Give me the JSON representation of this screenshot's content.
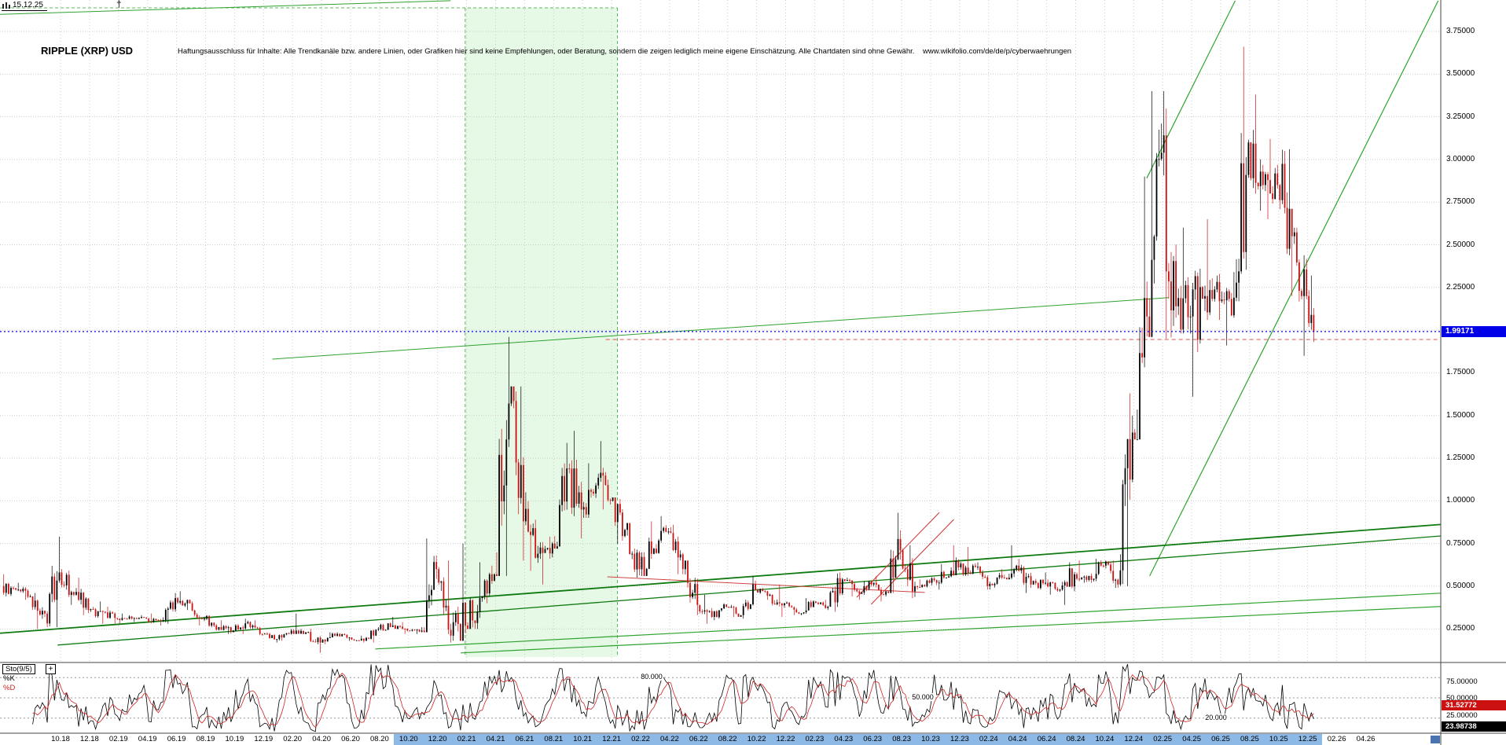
{
  "header": {
    "date_chip": "15.12.25",
    "cross_marker": "†",
    "title": "RIPPLE (XRP) USD",
    "disclaimer": "Haftungsausschluss für Inhalte: Alle Trendkanäle bzw. andere Linien, oder Grafiken hier sind keine Empfehlungen, oder Beratung, sondern die zeigen lediglich meine eigene Einschätzung. Alle Chartdaten sind ohne Gewähr.",
    "source_url": "www.wikifolio.com/de/de/p/cyberwaehrungen"
  },
  "price_axis": {
    "ticks": [
      "3.75000",
      "3.50000",
      "3.25000",
      "3.00000",
      "2.75000",
      "2.50000",
      "2.25000",
      "1.75000",
      "1.50000",
      "1.25000",
      "1.00000",
      "0.75000",
      "0.50000",
      "0.25000"
    ],
    "current_badge": "1.99171"
  },
  "indicator_panel": {
    "name": "Sto(9/5)",
    "add_button": "+",
    "k_label": "%K",
    "d_label": "%D",
    "level_labels": [
      "80.000",
      "50.000",
      "20.000"
    ],
    "axis_ticks": [
      "75.00000",
      "50.00000",
      "25.00000"
    ],
    "d_value_badge": "31.52772",
    "k_value_badge": "23.98738"
  },
  "time_axis": {
    "labels": [
      "10.18",
      "12.18",
      "02.19",
      "04.19",
      "06.19",
      "08.19",
      "10.19",
      "12.19",
      "02.20",
      "04.20",
      "06.20",
      "08.20",
      "10.20",
      "12.20",
      "02.21",
      "04.21",
      "06.21",
      "08.21",
      "10.21",
      "12.21",
      "02.22",
      "04.22",
      "06.22",
      "08.22",
      "10.22",
      "12.22",
      "02.23",
      "04.23",
      "06.23",
      "08.23",
      "10.23",
      "12.23",
      "02.24",
      "04.24",
      "06.24",
      "08.24",
      "10.24",
      "12.24",
      "02.25",
      "04.25",
      "06.25",
      "08.25",
      "10.25",
      "12.25",
      "02.26",
      "04.26"
    ],
    "highlight_from": "10.20",
    "highlight_to": "12.25"
  },
  "chart_data": {
    "type": "candlestick",
    "symbol": "RIPPLE (XRP) USD",
    "current_price": 1.99171,
    "ylim": [
      0.05,
      3.93
    ],
    "price_tick_step": 0.25,
    "months_start": "2018-06",
    "monthly_ohlc_columns": [
      "close",
      "high",
      "low"
    ],
    "monthly_ohlc": [
      [
        0.48,
        0.57,
        0.44
      ],
      [
        0.44,
        0.52,
        0.42
      ],
      [
        0.34,
        0.46,
        0.25
      ],
      [
        0.58,
        0.79,
        0.26
      ],
      [
        0.45,
        0.6,
        0.39
      ],
      [
        0.36,
        0.55,
        0.33
      ],
      [
        0.35,
        0.41,
        0.28
      ],
      [
        0.31,
        0.38,
        0.28
      ],
      [
        0.31,
        0.34,
        0.28
      ],
      [
        0.31,
        0.33,
        0.29
      ],
      [
        0.3,
        0.34,
        0.27
      ],
      [
        0.43,
        0.46,
        0.28
      ],
      [
        0.4,
        0.47,
        0.36
      ],
      [
        0.31,
        0.41,
        0.27
      ],
      [
        0.26,
        0.33,
        0.24
      ],
      [
        0.24,
        0.3,
        0.22
      ],
      [
        0.29,
        0.31,
        0.22
      ],
      [
        0.22,
        0.3,
        0.21
      ],
      [
        0.19,
        0.23,
        0.17
      ],
      [
        0.24,
        0.25,
        0.18
      ],
      [
        0.23,
        0.34,
        0.22
      ],
      [
        0.17,
        0.25,
        0.11
      ],
      [
        0.21,
        0.23,
        0.16
      ],
      [
        0.2,
        0.23,
        0.18
      ],
      [
        0.18,
        0.21,
        0.17
      ],
      [
        0.25,
        0.26,
        0.17
      ],
      [
        0.27,
        0.32,
        0.24
      ],
      [
        0.24,
        0.29,
        0.22
      ],
      [
        0.24,
        0.26,
        0.22
      ],
      [
        0.6,
        0.78,
        0.23
      ],
      [
        0.21,
        0.65,
        0.17
      ],
      [
        0.27,
        0.75,
        0.18
      ],
      [
        0.43,
        0.64,
        0.25
      ],
      [
        0.57,
        0.62,
        0.4
      ],
      [
        1.57,
        1.96,
        0.56
      ],
      [
        0.88,
        1.67,
        0.65
      ],
      [
        0.69,
        1.05,
        0.59
      ],
      [
        0.75,
        0.79,
        0.51
      ],
      [
        1.19,
        1.34,
        0.72
      ],
      [
        0.95,
        1.41,
        0.78
      ],
      [
        1.09,
        1.22,
        0.9
      ],
      [
        1.0,
        1.35,
        0.95
      ],
      [
        0.83,
        1.02,
        0.75
      ],
      [
        0.6,
        0.87,
        0.55
      ],
      [
        0.72,
        0.88,
        0.56
      ],
      [
        0.82,
        0.91,
        0.69
      ],
      [
        0.6,
        0.86,
        0.57
      ],
      [
        0.39,
        0.65,
        0.33
      ],
      [
        0.32,
        0.45,
        0.28
      ],
      [
        0.38,
        0.4,
        0.3
      ],
      [
        0.33,
        0.39,
        0.32
      ],
      [
        0.48,
        0.56,
        0.31
      ],
      [
        0.45,
        0.49,
        0.42
      ],
      [
        0.4,
        0.51,
        0.32
      ],
      [
        0.34,
        0.41,
        0.33
      ],
      [
        0.41,
        0.43,
        0.33
      ],
      [
        0.38,
        0.42,
        0.36
      ],
      [
        0.54,
        0.58,
        0.35
      ],
      [
        0.47,
        0.55,
        0.44
      ],
      [
        0.51,
        0.53,
        0.42
      ],
      [
        0.47,
        0.56,
        0.41
      ],
      [
        0.71,
        0.93,
        0.46
      ],
      [
        0.5,
        0.74,
        0.43
      ],
      [
        0.52,
        0.54,
        0.48
      ],
      [
        0.55,
        0.63,
        0.48
      ],
      [
        0.61,
        0.74,
        0.55
      ],
      [
        0.62,
        0.73,
        0.56
      ],
      [
        0.5,
        0.64,
        0.48
      ],
      [
        0.55,
        0.6,
        0.48
      ],
      [
        0.62,
        0.74,
        0.54
      ],
      [
        0.51,
        0.66,
        0.46
      ],
      [
        0.52,
        0.58,
        0.48
      ],
      [
        0.48,
        0.54,
        0.45
      ],
      [
        0.57,
        0.64,
        0.39
      ],
      [
        0.56,
        0.65,
        0.52
      ],
      [
        0.62,
        0.66,
        0.52
      ],
      [
        0.51,
        0.65,
        0.49
      ],
      [
        1.4,
        1.63,
        0.5
      ],
      [
        2.08,
        2.9,
        1.36
      ],
      [
        3.04,
        3.4,
        1.96
      ],
      [
        2.14,
        3.4,
        1.95
      ],
      [
        2.08,
        2.6,
        1.98
      ],
      [
        2.2,
        2.36,
        1.61
      ],
      [
        2.17,
        2.65,
        2.06
      ],
      [
        2.19,
        2.34,
        1.91
      ],
      [
        3.1,
        3.66,
        2.17
      ],
      [
        2.85,
        3.38,
        2.7
      ],
      [
        2.85,
        3.12,
        2.65
      ],
      [
        2.55,
        3.06,
        2.2
      ],
      [
        2.2,
        2.6,
        1.85
      ],
      [
        1.99171,
        2.32,
        1.93
      ]
    ],
    "shaded_region": {
      "from": "2021-02",
      "to": "2021-12",
      "u_from": 31.9,
      "u_to": 42.4,
      "color": "#d5f3d5"
    },
    "current_price_line": {
      "price": 1.99171,
      "color": "#0000ff",
      "style": "dotted"
    },
    "resistance_dashed": {
      "price": 1.945,
      "u_from": 41.6,
      "color": "#e05050",
      "style": "dashed"
    },
    "trend_lines": [
      {
        "u1": -0.2,
        "p1": 3.85,
        "u2": 30.9,
        "p2": 3.93,
        "color": "#2fa32f",
        "width": 1
      },
      {
        "u1": 18.6,
        "p1": 1.83,
        "u2": 80.4,
        "p2": 2.19,
        "color": "#2fa32f",
        "width": 1
      },
      {
        "u1": 79.1,
        "p1": 0.56,
        "u2": 99.0,
        "p2": 3.93,
        "color": "#2fa32f",
        "width": 1.2
      },
      {
        "u1": 78.9,
        "p1": 2.89,
        "u2": 85.0,
        "p2": 3.93,
        "color": "#2fa32f",
        "width": 1.2
      },
      {
        "u1": -0.2,
        "p1": 0.224,
        "u2": 99.4,
        "p2": 0.863,
        "color": "#0f7a0f",
        "width": 1.8
      },
      {
        "u1": 3.8,
        "p1": 0.155,
        "u2": 99.2,
        "p2": 0.794,
        "color": "#0f7a0f",
        "width": 1.3
      },
      {
        "u1": 25.7,
        "p1": 0.132,
        "u2": 99.2,
        "p2": 0.459,
        "color": "#2fa32f",
        "width": 1.2
      },
      {
        "u1": 31.6,
        "p1": 0.109,
        "u2": 99.2,
        "p2": 0.381,
        "color": "#2fa32f",
        "width": 1.2
      },
      {
        "u1": 41.7,
        "p1": 0.555,
        "u2": 63.6,
        "p2": 0.463,
        "color": "#cc4444",
        "width": 1
      },
      {
        "u1": 58.9,
        "p1": 0.435,
        "u2": 64.6,
        "p2": 0.932,
        "color": "#cc3333",
        "width": 1
      },
      {
        "u1": 59.9,
        "p1": 0.394,
        "u2": 65.6,
        "p2": 0.891,
        "color": "#cc3333",
        "width": 1
      }
    ],
    "trend_lines_note": "u = months since 2018-06; p = price in USD",
    "indicator": {
      "type": "stochastic",
      "k_period": 9,
      "d_period": 5,
      "levels": [
        80,
        50,
        20
      ],
      "last_k": 23.98738,
      "last_d": 31.52772
    }
  },
  "colors": {
    "candle_up": "#000000",
    "candle_down": "#cc1111",
    "grid": "#cccccc",
    "current_price_badge": "#0000e8",
    "d_badge": "#cc1111",
    "k_badge": "#000000",
    "axis_highlight": "#8db9e6",
    "band": "#d5f3d5"
  }
}
